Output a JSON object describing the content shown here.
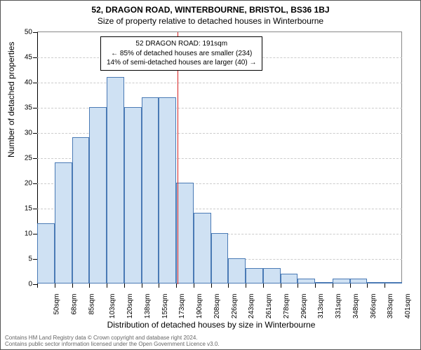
{
  "header": {
    "title_main": "52, DRAGON ROAD, WINTERBOURNE, BRISTOL, BS36 1BJ",
    "title_sub": "Size of property relative to detached houses in Winterbourne"
  },
  "chart": {
    "type": "histogram",
    "x_label": "Distribution of detached houses by size in Winterbourne",
    "y_label": "Number of detached properties",
    "ylim": [
      0,
      50
    ],
    "ytick_step": 5,
    "x_categories": [
      "50sqm",
      "68sqm",
      "85sqm",
      "103sqm",
      "120sqm",
      "138sqm",
      "155sqm",
      "173sqm",
      "190sqm",
      "208sqm",
      "226sqm",
      "243sqm",
      "261sqm",
      "278sqm",
      "296sqm",
      "313sqm",
      "331sqm",
      "348sqm",
      "366sqm",
      "383sqm",
      "401sqm"
    ],
    "values": [
      12,
      24,
      29,
      35,
      41,
      35,
      37,
      37,
      20,
      14,
      10,
      5,
      3,
      3,
      2,
      1,
      0,
      1,
      1,
      0,
      0
    ],
    "bar_fill": "#cfe1f3",
    "bar_border": "#4a7ab5",
    "grid_color": "#cccccc",
    "background_color": "#ffffff",
    "axis_color": "#000000",
    "bar_width_ratio": 1.0,
    "marker": {
      "position_index": 8.06,
      "color": "#d62222"
    },
    "callout": {
      "line1": "52 DRAGON ROAD: 191sqm",
      "line2": "← 85% of detached houses are smaller (234)",
      "line3": "14% of semi-detached houses are larger (40) →"
    },
    "title_fontsize": 12,
    "label_fontsize": 12,
    "tick_fontsize": 10
  },
  "footer": {
    "line1": "Contains HM Land Registry data © Crown copyright and database right 2024.",
    "line2": "Contains public sector information licensed under the Open Government Licence v3.0."
  }
}
